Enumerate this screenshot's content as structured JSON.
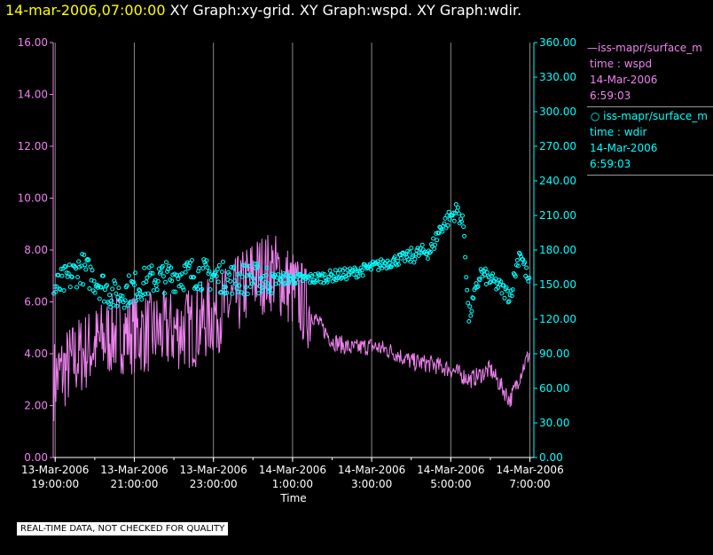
{
  "title": {
    "date": "14-mar-2006,07:00:00",
    "rest": " XY Graph:xy-grid.  XY Graph:wspd.  XY Graph:wdir."
  },
  "legend": [
    {
      "marker": "line",
      "series": "iss-mapr/surface_m",
      "field": "time : wspd",
      "date": "14-Mar-2006",
      "time": "6:59:03",
      "color": "#ee82ee"
    },
    {
      "marker": "circle",
      "series": "iss-mapr/surface_m",
      "field": "time : wdir",
      "date": "14-Mar-2006",
      "time": "6:59:03",
      "color": "#00ffff"
    }
  ],
  "note": "REAL-TIME DATA, NOT CHECKED FOR QUALITY",
  "colors": {
    "grid": "#888888",
    "axis_left": "#ee82ee",
    "axis_right": "#00ffff",
    "wspd": "#ee82ee",
    "wdir": "#00ffff",
    "xaxis": "#ffffff"
  },
  "chart_data": {
    "type": "scatter",
    "xlabel": "Time",
    "x_range": [
      "13-Mar-2006 18:57:00",
      "14-Mar-2006 07:06:00"
    ],
    "x_ticks": [
      {
        "t": "13-Mar-2006 19:00:00",
        "l1": "13-Mar-2006",
        "l2": "19:00:00"
      },
      {
        "t": "13-Mar-2006 21:00:00",
        "l1": "13-Mar-2006",
        "l2": "21:00:00"
      },
      {
        "t": "13-Mar-2006 23:00:00",
        "l1": "13-Mar-2006",
        "l2": "23:00:00"
      },
      {
        "t": "14-Mar-2006 01:00:00",
        "l1": "14-Mar-2006",
        "l2": "1:00:00"
      },
      {
        "t": "14-Mar-2006 03:00:00",
        "l1": "14-Mar-2006",
        "l2": "3:00:00"
      },
      {
        "t": "14-Mar-2006 05:00:00",
        "l1": "14-Mar-2006",
        "l2": "5:00:00"
      },
      {
        "t": "14-Mar-2006 07:00:00",
        "l1": "14-Mar-2006",
        "l2": "7:00:00"
      }
    ],
    "y_left": {
      "min": 0,
      "max": 16,
      "ticks": [
        "0.00",
        "2.00",
        "4.00",
        "6.00",
        "8.00",
        "10.00",
        "12.00",
        "14.00",
        "16.00"
      ]
    },
    "y_right": {
      "min": 0,
      "max": 360,
      "ticks": [
        "0.00",
        "30.00",
        "60.00",
        "90.00",
        "120.00",
        "150.00",
        "180.00",
        "210.00",
        "240.00",
        "270.00",
        "300.00",
        "330.00",
        "360.00"
      ]
    },
    "series": [
      {
        "name": "wspd",
        "axis": "left",
        "style": "line",
        "trend": [
          {
            "t": "13-Mar-2006 18:58:00",
            "v": 3.0
          },
          {
            "t": "13-Mar-2006 19:40:00",
            "v": 4.0
          },
          {
            "t": "13-Mar-2006 20:30:00",
            "v": 4.8
          },
          {
            "t": "13-Mar-2006 21:30:00",
            "v": 4.8
          },
          {
            "t": "13-Mar-2006 22:30:00",
            "v": 5.0
          },
          {
            "t": "13-Mar-2006 23:30:00",
            "v": 6.0
          },
          {
            "t": "14-Mar-2006 00:00:00",
            "v": 7.0
          },
          {
            "t": "14-Mar-2006 00:30:00",
            "v": 7.2
          },
          {
            "t": "14-Mar-2006 01:00:00",
            "v": 6.5
          },
          {
            "t": "14-Mar-2006 01:30:00",
            "v": 5.5
          },
          {
            "t": "14-Mar-2006 02:00:00",
            "v": 4.5
          },
          {
            "t": "14-Mar-2006 02:30:00",
            "v": 4.2
          },
          {
            "t": "14-Mar-2006 03:00:00",
            "v": 4.3
          },
          {
            "t": "14-Mar-2006 03:30:00",
            "v": 4.1
          },
          {
            "t": "14-Mar-2006 04:00:00",
            "v": 3.7
          },
          {
            "t": "14-Mar-2006 04:30:00",
            "v": 3.6
          },
          {
            "t": "14-Mar-2006 05:00:00",
            "v": 3.4
          },
          {
            "t": "14-Mar-2006 05:30:00",
            "v": 3.0
          },
          {
            "t": "14-Mar-2006 06:00:00",
            "v": 3.4
          },
          {
            "t": "14-Mar-2006 06:30:00",
            "v": 2.2
          },
          {
            "t": "14-Mar-2006 06:50:00",
            "v": 3.5
          },
          {
            "t": "14-Mar-2006 06:59:00",
            "v": 4.0
          }
        ]
      },
      {
        "name": "wdir",
        "axis": "right",
        "style": "circles",
        "trend": [
          {
            "t": "13-Mar-2006 18:58:00",
            "v": 145
          },
          {
            "t": "13-Mar-2006 19:40:00",
            "v": 165
          },
          {
            "t": "13-Mar-2006 20:30:00",
            "v": 140
          },
          {
            "t": "13-Mar-2006 21:30:00",
            "v": 155
          },
          {
            "t": "13-Mar-2006 22:30:00",
            "v": 160
          },
          {
            "t": "13-Mar-2006 23:30:00",
            "v": 155
          },
          {
            "t": "14-Mar-2006 00:30:00",
            "v": 155
          },
          {
            "t": "14-Mar-2006 01:30:00",
            "v": 155
          },
          {
            "t": "14-Mar-2006 02:30:00",
            "v": 160
          },
          {
            "t": "14-Mar-2006 03:30:00",
            "v": 170
          },
          {
            "t": "14-Mar-2006 04:00:00",
            "v": 175
          },
          {
            "t": "14-Mar-2006 04:30:00",
            "v": 180
          },
          {
            "t": "14-Mar-2006 04:45:00",
            "v": 200
          },
          {
            "t": "14-Mar-2006 05:10:00",
            "v": 215
          },
          {
            "t": "14-Mar-2006 05:20:00",
            "v": 200
          },
          {
            "t": "14-Mar-2006 05:27:00",
            "v": 120
          },
          {
            "t": "14-Mar-2006 05:45:00",
            "v": 160
          },
          {
            "t": "14-Mar-2006 06:10:00",
            "v": 150
          },
          {
            "t": "14-Mar-2006 06:30:00",
            "v": 140
          },
          {
            "t": "14-Mar-2006 06:45:00",
            "v": 180
          },
          {
            "t": "14-Mar-2006 06:59:00",
            "v": 150
          }
        ]
      }
    ]
  }
}
